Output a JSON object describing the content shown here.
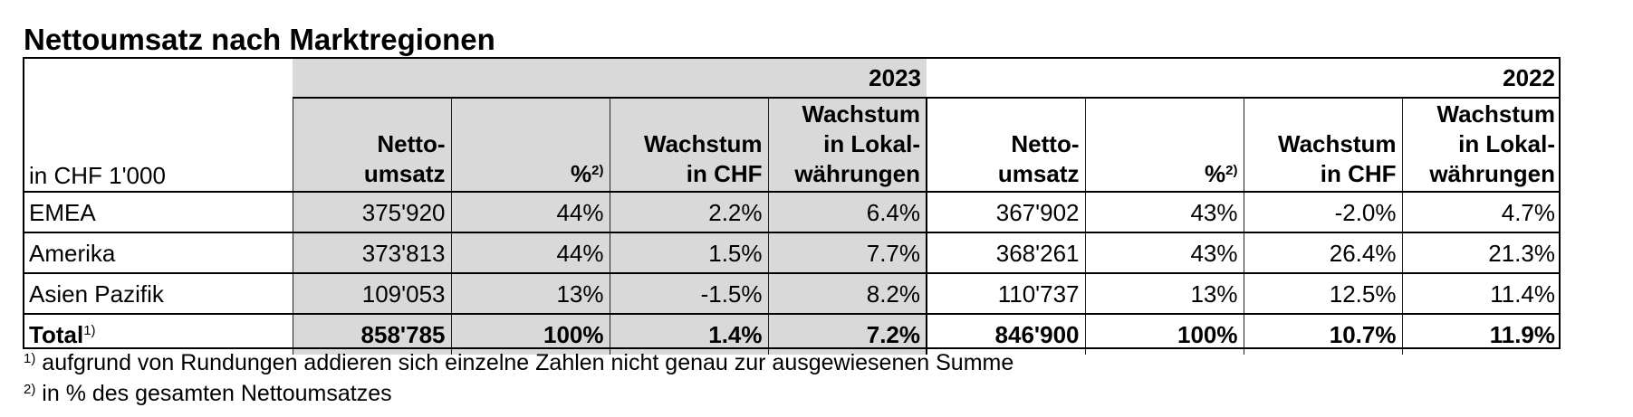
{
  "title": "Nettoumsatz nach Marktregionen",
  "unit_label": "in CHF 1'000",
  "years": [
    "2023",
    "2022"
  ],
  "columns": {
    "netto_l1": "Netto-",
    "netto_l2": "umsatz",
    "pct": "%",
    "pct_note": "2)",
    "chf_l1": "Wachstum",
    "chf_l2": "in CHF",
    "lokal_l1": "Wachstum",
    "lokal_l2": "in Lokal-",
    "lokal_l3": "währungen"
  },
  "rows": [
    {
      "label": "EMEA",
      "v": [
        "375'920",
        "44%",
        "2.2%",
        "6.4%",
        "367'902",
        "43%",
        "-2.0%",
        "4.7%"
      ]
    },
    {
      "label": "Amerika",
      "v": [
        "373'813",
        "44%",
        "1.5%",
        "7.7%",
        "368'261",
        "43%",
        "26.4%",
        "21.3%"
      ]
    },
    {
      "label": "Asien Pazifik",
      "v": [
        "109'053",
        "13%",
        "-1.5%",
        "8.2%",
        "110'737",
        "13%",
        "12.5%",
        "11.4%"
      ]
    }
  ],
  "total": {
    "label": "Total",
    "note": "1)",
    "v": [
      "858'785",
      "100%",
      "1.4%",
      "7.2%",
      "846'900",
      "100%",
      "10.7%",
      "11.9%"
    ]
  },
  "footnotes": [
    {
      "mark": "1)",
      "text": "aufgrund von Rundungen addieren sich einzelne Zahlen nicht genau zur ausgewiesenen Summe"
    },
    {
      "mark": "2)",
      "text": "in % des gesamten Nettoumsatzes"
    }
  ],
  "colors": {
    "shade_2023": "#d9d9d9"
  }
}
